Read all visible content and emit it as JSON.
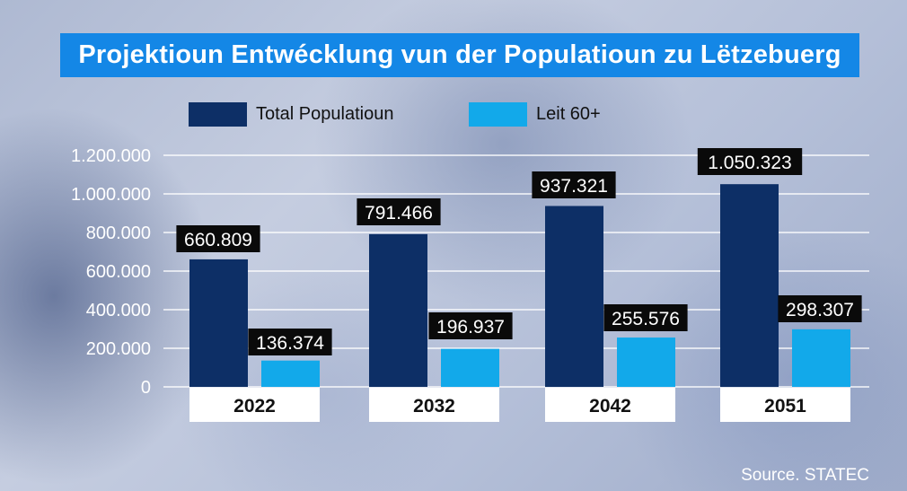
{
  "source": "Source. STATEC",
  "colors": {
    "total": "#0d2f66",
    "senior": "#12a9ea",
    "title_bg": "#1487e6",
    "label_bg": "#0a0a0a"
  },
  "chart_data": {
    "type": "bar",
    "title": "Projektioun Entwécklung vun der Populatioun zu Lëtzebuerg",
    "categories": [
      "2022",
      "2032",
      "2042",
      "2051"
    ],
    "series": [
      {
        "name": "Total Populatioun",
        "values": [
          660809,
          791466,
          937321,
          1050323
        ],
        "labels": [
          "660.809",
          "791.466",
          "937.321",
          "1.050.323"
        ]
      },
      {
        "name": "Leit 60+",
        "values": [
          136374,
          196937,
          255576,
          298307
        ],
        "labels": [
          "136.374",
          "196.937",
          "255.576",
          "298.307"
        ]
      }
    ],
    "yticks": [
      0,
      200000,
      400000,
      600000,
      800000,
      1000000,
      1200000
    ],
    "ytick_labels": [
      "0",
      "200.000",
      "400.000",
      "600.000",
      "800.000",
      "1.000.000",
      "1.200.000"
    ],
    "ylim": [
      0,
      1200000
    ],
    "grid": true,
    "legend_position": "top"
  }
}
